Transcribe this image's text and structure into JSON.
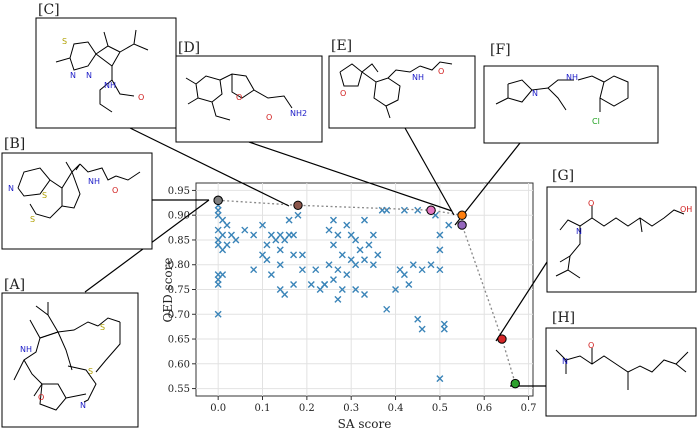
{
  "chart_data": {
    "type": "scatter",
    "xlabel": "SA score",
    "ylabel": "QED score",
    "xlim": [
      -0.05,
      0.71
    ],
    "ylim": [
      0.535,
      0.965
    ],
    "xticks": [
      "0.0",
      "0.1",
      "0.2",
      "0.3",
      "0.4",
      "0.5",
      "0.6",
      "0.7"
    ],
    "yticks": [
      "0.55",
      "0.60",
      "0.65",
      "0.70",
      "0.75",
      "0.80",
      "0.85",
      "0.90",
      "0.95"
    ],
    "grid": true,
    "marker_color": "#3a84b8",
    "points": [
      [
        0.0,
        0.92
      ],
      [
        0.0,
        0.91
      ],
      [
        0.0,
        0.9
      ],
      [
        0.01,
        0.89
      ],
      [
        0.0,
        0.87
      ],
      [
        0.02,
        0.88
      ],
      [
        0.01,
        0.86
      ],
      [
        0.0,
        0.85
      ],
      [
        0.03,
        0.86
      ],
      [
        0.04,
        0.85
      ],
      [
        0.0,
        0.84
      ],
      [
        0.01,
        0.83
      ],
      [
        0.02,
        0.84
      ],
      [
        0.06,
        0.87
      ],
      [
        0.0,
        0.78
      ],
      [
        0.01,
        0.78
      ],
      [
        0.0,
        0.77
      ],
      [
        0.0,
        0.76
      ],
      [
        0.0,
        0.7
      ],
      [
        0.08,
        0.86
      ],
      [
        0.1,
        0.88
      ],
      [
        0.12,
        0.86
      ],
      [
        0.14,
        0.86
      ],
      [
        0.11,
        0.84
      ],
      [
        0.13,
        0.85
      ],
      [
        0.15,
        0.85
      ],
      [
        0.16,
        0.86
      ],
      [
        0.17,
        0.86
      ],
      [
        0.18,
        0.9
      ],
      [
        0.16,
        0.89
      ],
      [
        0.1,
        0.82
      ],
      [
        0.11,
        0.81
      ],
      [
        0.14,
        0.83
      ],
      [
        0.17,
        0.82
      ],
      [
        0.19,
        0.82
      ],
      [
        0.14,
        0.8
      ],
      [
        0.08,
        0.79
      ],
      [
        0.12,
        0.78
      ],
      [
        0.14,
        0.75
      ],
      [
        0.15,
        0.74
      ],
      [
        0.17,
        0.76
      ],
      [
        0.19,
        0.79
      ],
      [
        0.21,
        0.76
      ],
      [
        0.22,
        0.79
      ],
      [
        0.23,
        0.75
      ],
      [
        0.24,
        0.76
      ],
      [
        0.26,
        0.89
      ],
      [
        0.25,
        0.87
      ],
      [
        0.27,
        0.86
      ],
      [
        0.29,
        0.88
      ],
      [
        0.3,
        0.86
      ],
      [
        0.31,
        0.85
      ],
      [
        0.33,
        0.89
      ],
      [
        0.35,
        0.86
      ],
      [
        0.26,
        0.84
      ],
      [
        0.28,
        0.82
      ],
      [
        0.3,
        0.81
      ],
      [
        0.32,
        0.83
      ],
      [
        0.34,
        0.84
      ],
      [
        0.25,
        0.8
      ],
      [
        0.27,
        0.79
      ],
      [
        0.29,
        0.78
      ],
      [
        0.31,
        0.8
      ],
      [
        0.33,
        0.81
      ],
      [
        0.35,
        0.8
      ],
      [
        0.36,
        0.82
      ],
      [
        0.24,
        0.76
      ],
      [
        0.26,
        0.77
      ],
      [
        0.28,
        0.75
      ],
      [
        0.31,
        0.75
      ],
      [
        0.27,
        0.73
      ],
      [
        0.33,
        0.74
      ],
      [
        0.37,
        0.91
      ],
      [
        0.38,
        0.91
      ],
      [
        0.42,
        0.91
      ],
      [
        0.45,
        0.91
      ],
      [
        0.49,
        0.9
      ],
      [
        0.52,
        0.88
      ],
      [
        0.5,
        0.86
      ],
      [
        0.5,
        0.83
      ],
      [
        0.41,
        0.79
      ],
      [
        0.42,
        0.78
      ],
      [
        0.44,
        0.8
      ],
      [
        0.46,
        0.79
      ],
      [
        0.48,
        0.8
      ],
      [
        0.5,
        0.79
      ],
      [
        0.43,
        0.76
      ],
      [
        0.4,
        0.75
      ],
      [
        0.38,
        0.71
      ],
      [
        0.45,
        0.69
      ],
      [
        0.46,
        0.67
      ],
      [
        0.51,
        0.68
      ],
      [
        0.51,
        0.67
      ],
      [
        0.5,
        0.57
      ]
    ],
    "highlights": [
      {
        "label": "[A]",
        "x": 0.0,
        "y": 0.93,
        "color": "#8c8c8c"
      },
      {
        "label": "[B]",
        "x": 0.0,
        "y": 0.93,
        "color": "#7f7f7f"
      },
      {
        "label": "[C]",
        "x": 0.18,
        "y": 0.92,
        "color": "#8c564b"
      },
      {
        "label": "[D]",
        "x": 0.48,
        "y": 0.91,
        "color": "#e377c2"
      },
      {
        "label": "[E]",
        "x": 0.55,
        "y": 0.9,
        "color": "#ff7f0e"
      },
      {
        "label": "[F]",
        "x": 0.55,
        "y": 0.88,
        "color": "#9467bd"
      },
      {
        "label": "[G]",
        "x": 0.64,
        "y": 0.65,
        "color": "#d62728"
      },
      {
        "label": "[H]",
        "x": 0.67,
        "y": 0.56,
        "color": "#2ca02c"
      }
    ],
    "pareto_front": [
      [
        0.0,
        0.93
      ],
      [
        0.18,
        0.92
      ],
      [
        0.48,
        0.91
      ],
      [
        0.55,
        0.9
      ],
      [
        0.55,
        0.88
      ],
      [
        0.64,
        0.65
      ],
      [
        0.67,
        0.56
      ]
    ]
  },
  "panels": [
    "[A]",
    "[B]",
    "[C]",
    "[D]",
    "[E]",
    "[F]",
    "[G]",
    "[H]"
  ],
  "atoms": {
    "S": "S",
    "N": "N",
    "NH": "NH",
    "O": "O",
    "OH": "OH",
    "NH2": "NH2",
    "Cl": "Cl"
  },
  "colors": {
    "nitrogen": "#1c1cc8",
    "oxygen": "#d01c1c",
    "sulfur": "#b0a000",
    "chlorine": "#1ca01c"
  }
}
